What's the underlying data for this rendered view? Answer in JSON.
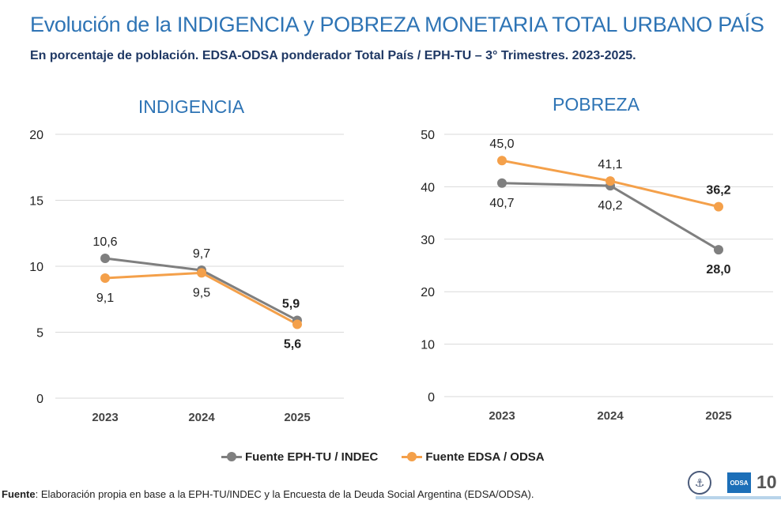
{
  "header": {
    "title": "Evolución de la INDIGENCIA y POBREZA MONETARIA TOTAL URBANO PAÍS",
    "subtitle": "En porcentaje de población. EDSA-ODSA ponderador Total País / EPH-TU – 3° Trimestres. 2023-2025."
  },
  "colors": {
    "indec": "#7f7f7f",
    "edsa": "#f4a04a",
    "title": "#2e74b5",
    "grid": "#d9d9d9"
  },
  "chart_data": [
    {
      "type": "line",
      "title": "INDIGENCIA",
      "categories": [
        "2023",
        "2024",
        "2025"
      ],
      "ylim": [
        0,
        20
      ],
      "yticks": [
        "0",
        "5",
        "10",
        "15",
        "20"
      ],
      "series": [
        {
          "name": "Fuente EPH-TU / INDEC",
          "values": [
            10.6,
            9.7,
            5.9
          ],
          "labels": [
            "10,6",
            "9,7",
            "5,9"
          ]
        },
        {
          "name": "Fuente EDSA / ODSA",
          "values": [
            9.1,
            9.5,
            5.6
          ],
          "labels": [
            "9,1",
            "9,5",
            "5,6"
          ]
        }
      ]
    },
    {
      "type": "line",
      "title": "POBREZA",
      "categories": [
        "2023",
        "2024",
        "2025"
      ],
      "ylim": [
        0,
        50
      ],
      "yticks": [
        "0",
        "10",
        "20",
        "30",
        "40",
        "50"
      ],
      "series": [
        {
          "name": "Fuente EPH-TU / INDEC",
          "values": [
            40.7,
            40.2,
            28.0
          ],
          "labels": [
            "40,7",
            "40,2",
            "28,0"
          ]
        },
        {
          "name": "Fuente EDSA / ODSA",
          "values": [
            45.0,
            41.1,
            36.2
          ],
          "labels": [
            "45,0",
            "41,1",
            "36,2"
          ]
        }
      ]
    }
  ],
  "legend": {
    "indec": "Fuente EPH-TU / INDEC",
    "edsa": "Fuente EDSA / ODSA"
  },
  "footer": {
    "label": "Fuente",
    "text": ": Elaboración propia en base a la EPH-TU/INDEC y la Encuesta de la Deuda Social Argentina (EDSA/ODSA)."
  },
  "logos": {
    "odsa": "ODSA",
    "seal_icon": "university-seal-icon"
  },
  "page_number": "10"
}
